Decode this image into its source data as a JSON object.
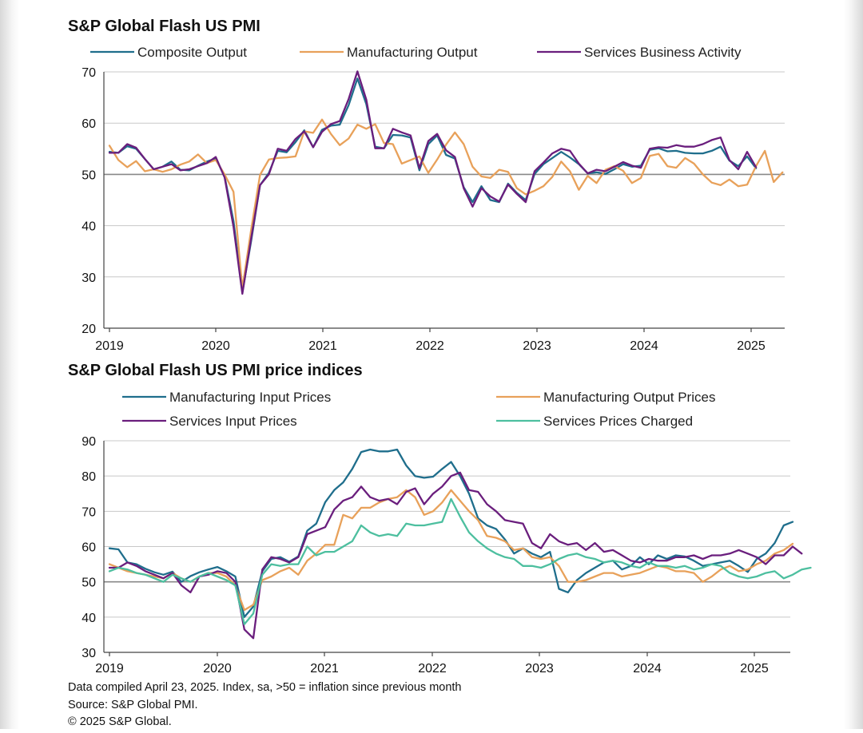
{
  "chart_data": [
    {
      "type": "line",
      "title": "S&P Global Flash US PMI",
      "ylim": [
        20,
        70
      ],
      "yticks": [
        20,
        30,
        40,
        50,
        60,
        70
      ],
      "reference_line": 50,
      "x_tick_labels": [
        "2019",
        "2020",
        "2021",
        "2022",
        "2023",
        "2024",
        "2025"
      ],
      "start": "2019-01",
      "series": [
        {
          "name": "Composite Output",
          "color": "#1f6e8c",
          "values": [
            54.4,
            54.2,
            55.5,
            55.0,
            53.0,
            51.0,
            51.5,
            52.5,
            50.9,
            50.8,
            51.7,
            52.5,
            53.1,
            49.6,
            40.9,
            27.0,
            37.0,
            47.9,
            50.3,
            54.6,
            54.3,
            56.3,
            58.6,
            55.3,
            58.7,
            59.5,
            59.7,
            63.5,
            68.7,
            63.7,
            55.4,
            55.1,
            57.7,
            57.6,
            57.2,
            50.8,
            55.9,
            57.6,
            53.8,
            53.1,
            47.5,
            44.6,
            47.7,
            45.0,
            44.6,
            48.2,
            46.4,
            45.0,
            50.1,
            52.0,
            53.2,
            54.4,
            53.3,
            52.0,
            50.2,
            50.4,
            50.1,
            51.0,
            52.0,
            51.5,
            51.7,
            54.8,
            55.1,
            54.5,
            54.6,
            54.2,
            54.1,
            54.1,
            54.6,
            55.4,
            52.7,
            51.6,
            53.5,
            51.2
          ]
        },
        {
          "name": "Manufacturing Output",
          "color": "#e8a15a",
          "values": [
            55.6,
            52.8,
            51.4,
            52.6,
            50.6,
            51.0,
            50.5,
            51.0,
            51.9,
            52.5,
            53.9,
            52.2,
            52.8,
            50.0,
            46.6,
            27.8,
            39.2,
            49.9,
            52.9,
            53.2,
            53.3,
            53.5,
            58.4,
            58.1,
            60.7,
            57.9,
            55.7,
            57.0,
            59.7,
            58.9,
            59.8,
            56.1,
            55.9,
            52.1,
            52.8,
            53.5,
            50.3,
            52.9,
            55.8,
            58.2,
            55.9,
            51.5,
            49.6,
            49.3,
            50.9,
            50.5,
            47.3,
            46.1,
            46.8,
            47.7,
            49.5,
            52.5,
            50.6,
            47.0,
            49.7,
            48.3,
            50.9,
            51.6,
            50.7,
            48.3,
            49.3,
            53.6,
            54.0,
            51.6,
            51.3,
            53.2,
            52.1,
            50.0,
            48.4,
            47.9,
            49.0,
            47.7,
            48.0,
            51.6,
            54.6,
            48.5,
            50.4
          ]
        },
        {
          "name": "Services Business Activity",
          "color": "#6a1e7d",
          "values": [
            54.2,
            54.2,
            55.9,
            55.2,
            53.0,
            51.0,
            51.5,
            52.0,
            50.8,
            51.0,
            51.6,
            52.2,
            53.4,
            49.4,
            39.8,
            26.7,
            37.5,
            47.9,
            50.0,
            55.0,
            54.6,
            56.9,
            58.4,
            55.3,
            58.3,
            59.8,
            60.4,
            64.7,
            70.1,
            64.6,
            55.1,
            55.1,
            58.9,
            58.2,
            57.6,
            51.2,
            56.5,
            57.9,
            54.7,
            53.4,
            47.3,
            43.7,
            47.3,
            45.7,
            44.7,
            48.0,
            46.2,
            44.6,
            50.6,
            52.3,
            54.1,
            55.0,
            54.6,
            52.1,
            50.2,
            50.9,
            50.6,
            51.5,
            52.4,
            51.7,
            51.3,
            55.0,
            55.3,
            55.2,
            55.7,
            55.4,
            55.4,
            55.9,
            56.7,
            57.2,
            52.8,
            51.0,
            54.4,
            51.4
          ]
        }
      ]
    },
    {
      "type": "line",
      "title": "S&P Global Flash US PMI price indices",
      "ylim": [
        30,
        90
      ],
      "yticks": [
        30,
        40,
        50,
        60,
        70,
        80,
        90
      ],
      "reference_line": 50,
      "x_tick_labels": [
        "2019",
        "2020",
        "2021",
        "2022",
        "2023",
        "2024",
        "2025"
      ],
      "start": "2019-01",
      "series": [
        {
          "name": "Manufacturing Input Prices",
          "color": "#1f6e8c",
          "values": [
            59.5,
            59.2,
            55.5,
            55.0,
            53.7,
            52.7,
            52.0,
            52.9,
            50.0,
            51.6,
            52.7,
            53.5,
            54.2,
            53.0,
            51.5,
            40.0,
            43.0,
            53.0,
            56.5,
            57.0,
            55.7,
            57.2,
            64.5,
            66.5,
            72.6,
            76.0,
            78.2,
            82.0,
            86.8,
            87.5,
            87.0,
            87.0,
            87.5,
            83.0,
            80.0,
            79.5,
            79.8,
            82.0,
            84.0,
            80.0,
            75.0,
            68.0,
            66.0,
            65.0,
            62.0,
            58.0,
            59.5,
            58.0,
            57.0,
            58.5,
            48.0,
            47.0,
            50.5,
            52.5,
            54.0,
            55.5,
            56.0,
            53.5,
            54.5,
            57.0,
            55.0,
            57.5,
            56.5,
            57.5,
            57.2,
            56.0,
            54.5,
            55.0,
            55.5,
            56.0,
            54.5,
            52.8,
            56.5,
            58.0,
            61.0,
            66.0,
            67.0
          ]
        },
        {
          "name": "Manufacturing Output Prices",
          "color": "#e8a15a",
          "values": [
            55.0,
            54.0,
            53.0,
            52.5,
            52.0,
            51.5,
            51.0,
            52.5,
            51.0,
            50.0,
            51.5,
            52.5,
            52.5,
            51.5,
            49.0,
            42.0,
            43.5,
            50.5,
            51.5,
            53.0,
            54.0,
            52.0,
            56.0,
            58.0,
            60.5,
            60.5,
            69.0,
            68.0,
            71.0,
            71.0,
            72.5,
            73.5,
            74.0,
            76.0,
            74.0,
            69.0,
            70.0,
            72.5,
            76.0,
            73.0,
            70.0,
            67.5,
            63.0,
            62.5,
            61.5,
            59.0,
            59.5,
            57.0,
            56.5,
            57.0,
            54.5,
            50.0,
            50.0,
            50.5,
            51.5,
            52.5,
            52.5,
            51.5,
            52.0,
            52.5,
            53.5,
            54.5,
            54.0,
            53.0,
            53.0,
            52.5,
            50.0,
            51.5,
            53.5,
            54.5,
            53.0,
            53.5,
            55.0,
            56.0,
            58.0,
            59.0,
            60.8
          ]
        },
        {
          "name": "Services Input Prices",
          "color": "#6a1e7d",
          "values": [
            54.0,
            54.0,
            55.5,
            54.5,
            53.0,
            52.0,
            51.0,
            52.5,
            49.0,
            47.0,
            51.5,
            52.0,
            53.0,
            52.5,
            50.0,
            36.5,
            34.0,
            53.5,
            57.0,
            56.5,
            55.5,
            57.0,
            63.5,
            64.5,
            65.5,
            70.5,
            73.0,
            74.0,
            77.0,
            74.0,
            73.0,
            73.5,
            72.0,
            75.5,
            76.5,
            72.0,
            75.0,
            77.0,
            80.0,
            81.0,
            76.0,
            75.5,
            72.0,
            70.0,
            67.5,
            67.0,
            66.5,
            61.0,
            59.5,
            63.5,
            61.5,
            60.5,
            61.0,
            59.0,
            61.0,
            58.5,
            59.0,
            57.5,
            56.0,
            55.5,
            56.5,
            56.0,
            56.0,
            57.0,
            57.0,
            57.5,
            56.5,
            57.5,
            57.5,
            58.0,
            59.0,
            58.0,
            57.0,
            55.0,
            57.5,
            57.5,
            60.0,
            58.0
          ]
        },
        {
          "name": "Services Prices Charged",
          "color": "#4dbf9f",
          "values": [
            53.0,
            54.0,
            53.5,
            52.5,
            52.0,
            51.0,
            50.0,
            52.0,
            51.0,
            50.0,
            51.5,
            52.5,
            51.5,
            50.5,
            49.0,
            38.0,
            41.0,
            52.0,
            55.0,
            54.5,
            55.0,
            55.0,
            60.0,
            57.5,
            58.5,
            58.5,
            60.0,
            61.5,
            66.0,
            64.0,
            63.0,
            63.5,
            63.0,
            66.5,
            66.0,
            66.0,
            66.5,
            67.0,
            73.5,
            68.5,
            64.0,
            61.5,
            59.5,
            58.0,
            57.0,
            56.5,
            54.5,
            54.5,
            54.0,
            55.0,
            56.5,
            57.5,
            58.0,
            57.0,
            56.5,
            55.5,
            56.0,
            55.5,
            54.5,
            54.0,
            55.5,
            54.5,
            54.5,
            54.0,
            54.5,
            53.5,
            54.0,
            55.0,
            54.5,
            52.5,
            51.5,
            51.0,
            51.5,
            52.5,
            53.0,
            51.0,
            52.0,
            53.5,
            54.0
          ]
        }
      ]
    }
  ],
  "footnotes": [
    "Data compiled April 23, 2025. Index, sa, >50 = inflation since previous month",
    "Source: S&P Global PMI.",
    "© 2025 S&P Global."
  ]
}
